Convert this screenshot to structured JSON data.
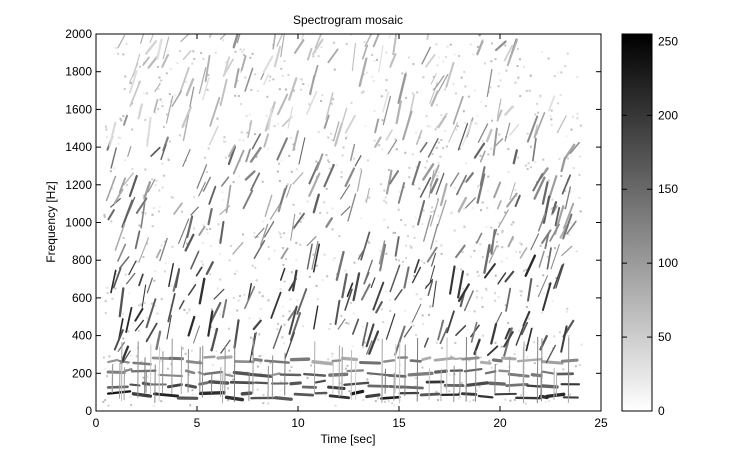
{
  "chart_data": {
    "type": "heatmap",
    "title": "Spectrogram mosaic",
    "xlabel": "Time [sec]",
    "ylabel": "Frequency [Hz]",
    "xlim": [
      0,
      25
    ],
    "ylim": [
      0,
      2000
    ],
    "x_ticks": [
      0,
      5,
      10,
      15,
      20,
      25
    ],
    "y_ticks": [
      0,
      200,
      400,
      600,
      800,
      1000,
      1200,
      1400,
      1600,
      1800,
      2000
    ],
    "colorbar": {
      "range": [
        0,
        255
      ],
      "ticks": [
        0,
        50,
        100,
        150,
        200,
        250
      ],
      "colormap": "gray-reversed",
      "low_color": "#ffffff",
      "high_color": "#000000"
    },
    "content": {
      "signal_end_sec": 24,
      "harmonic_bands_hz": [
        80,
        140,
        200,
        270
      ]
    }
  }
}
